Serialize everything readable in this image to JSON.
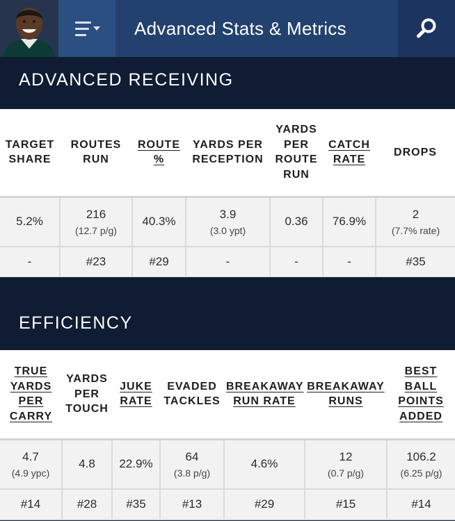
{
  "header": {
    "title": "Advanced Stats & Metrics"
  },
  "sections": {
    "receiving": {
      "title": "ADVANCED RECEIVING",
      "headers": [
        {
          "label": "TARGET SHARE",
          "sortable": false
        },
        {
          "label": "ROUTES RUN",
          "sortable": false
        },
        {
          "label": "ROUTE %",
          "sortable": true
        },
        {
          "label": "YARDS PER RECEPTION",
          "sortable": false
        },
        {
          "label": "YARDS PER ROUTE RUN",
          "sortable": false
        },
        {
          "label": "CATCH RATE",
          "sortable": true
        },
        {
          "label": "DROPS",
          "sortable": false
        }
      ],
      "values": [
        {
          "main": "5.2%",
          "sub": ""
        },
        {
          "main": "216",
          "sub": "(12.7 p/g)"
        },
        {
          "main": "40.3%",
          "sub": ""
        },
        {
          "main": "3.9",
          "sub": "(3.0 ypt)"
        },
        {
          "main": "0.36",
          "sub": ""
        },
        {
          "main": "76.9%",
          "sub": ""
        },
        {
          "main": "2",
          "sub": "(7.7% rate)"
        }
      ],
      "ranks": [
        "-",
        "#23",
        "#29",
        "-",
        "-",
        "-",
        "#35"
      ]
    },
    "efficiency": {
      "title": "EFFICIENCY",
      "headers": [
        {
          "label": "TRUE YARDS PER CARRY",
          "sortable": true
        },
        {
          "label": "YARDS PER TOUCH",
          "sortable": false
        },
        {
          "label": "JUKE RATE",
          "sortable": true
        },
        {
          "label": "EVADED TACKLES",
          "sortable": false
        },
        {
          "label": "BREAKAWAY RUN RATE",
          "sortable": true
        },
        {
          "label": "BREAKAWAY RUNS",
          "sortable": true
        },
        {
          "label": "BEST BALL POINTS ADDED",
          "sortable": true
        }
      ],
      "values": [
        {
          "main": "4.7",
          "sub": "(4.9 ypc)"
        },
        {
          "main": "4.8",
          "sub": ""
        },
        {
          "main": "22.9%",
          "sub": ""
        },
        {
          "main": "64",
          "sub": "(3.8 p/g)"
        },
        {
          "main": "4.6%",
          "sub": ""
        },
        {
          "main": "12",
          "sub": "(0.7 p/g)"
        },
        {
          "main": "106.2",
          "sub": "(6.25 p/g)"
        }
      ],
      "ranks": [
        "#14",
        "#28",
        "#35",
        "#13",
        "#29",
        "#15",
        "#14"
      ]
    }
  },
  "icons": {
    "menu": "menu-icon",
    "search": "search-icon",
    "avatar": "player-avatar"
  },
  "colors": {
    "topbar": "#23416f",
    "menu_button": "#2c4f82",
    "search_button": "#1b3560",
    "section_bg": "#0f1c33",
    "header_cell": "#ffffff",
    "data_cell": "#f2f2f2"
  }
}
